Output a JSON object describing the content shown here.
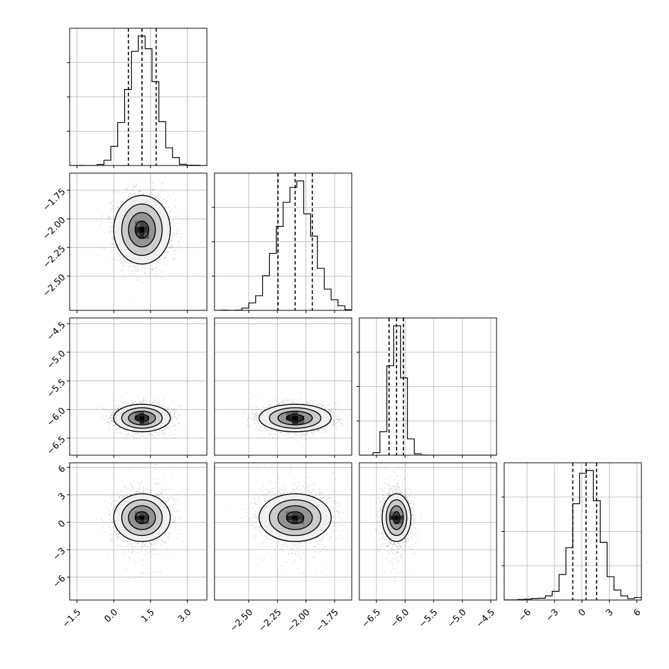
{
  "chart_data": {
    "type": "corner",
    "params": [
      {
        "range": [
          -1.8,
          3.8
        ],
        "ticks": [
          -1.5,
          0.0,
          1.5,
          3.0
        ],
        "tick_labels": [
          "−1.5",
          "0.0",
          "1.5",
          "3.0"
        ],
        "mean": 1.15,
        "sd": 0.55,
        "quantiles": [
          0.6,
          1.15,
          1.73
        ]
      },
      {
        "range": [
          -2.8,
          -1.6
        ],
        "ticks": [
          -2.5,
          -2.25,
          -2.0,
          -1.75
        ],
        "tick_labels": [
          "−2.50",
          "−2.25",
          "−2.00",
          "−1.75"
        ],
        "mean": -2.095,
        "sd": 0.15,
        "quantiles": [
          -2.245,
          -2.095,
          -1.945
        ]
      },
      {
        "range": [
          -6.8,
          -4.4
        ],
        "ticks": [
          -6.5,
          -6.0,
          -5.5,
          -5.0,
          -4.5
        ],
        "tick_labels": [
          "−6.5",
          "−6.0",
          "−5.5",
          "−5.0",
          "−4.5"
        ],
        "mean": -6.15,
        "sd": 0.12,
        "quantiles": [
          -6.28,
          -6.15,
          -6.03
        ]
      },
      {
        "range": [
          -8.5,
          6.5
        ],
        "ticks": [
          -6,
          -3,
          0,
          3,
          6
        ],
        "tick_labels": [
          "−6",
          "−3",
          "0",
          "3",
          "6"
        ],
        "mean": 0.5,
        "sd": 1.3,
        "quantiles": [
          -1.0,
          0.45,
          1.6
        ]
      }
    ],
    "quantile_levels": [
      0.16,
      0.5,
      0.84
    ],
    "histogram_bins": 20,
    "grid": true
  }
}
